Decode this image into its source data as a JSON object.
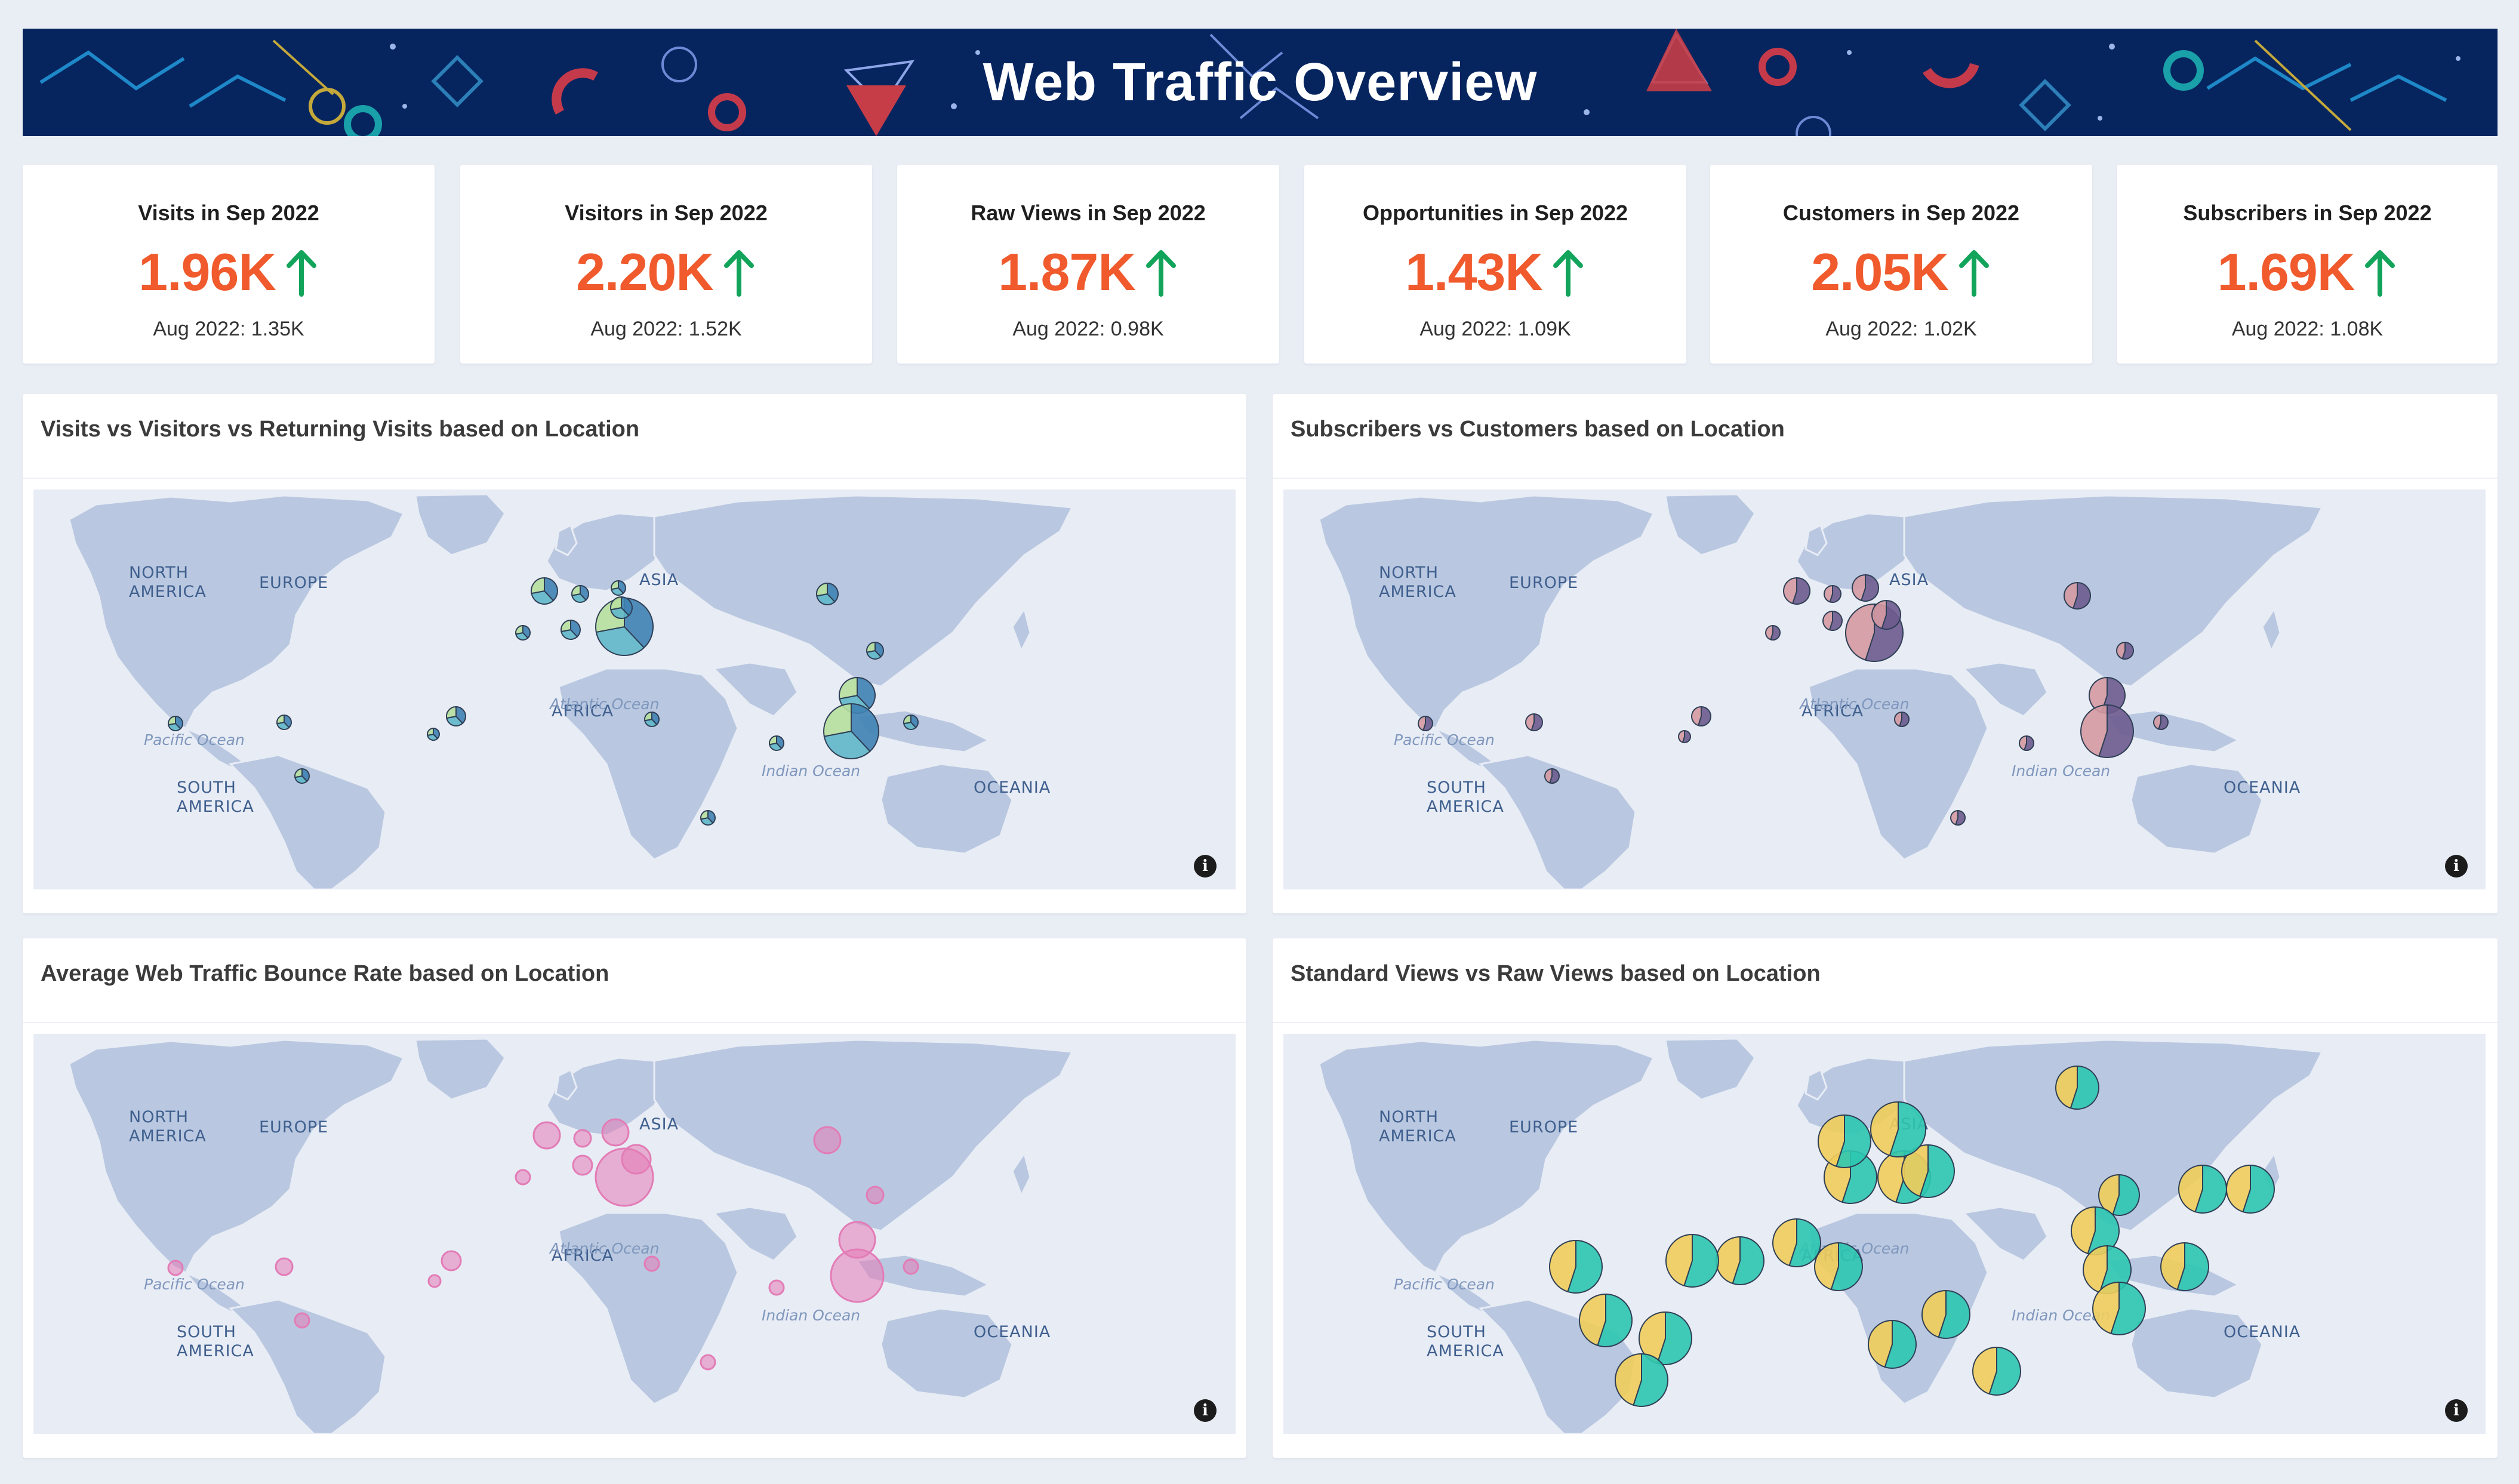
{
  "header": {
    "title": "Web Traffic Overview"
  },
  "colors": {
    "banner_bg": "#06255f",
    "kpi_value": "#f05a2c",
    "kpi_up_arrow": "#12a45a",
    "land": "#b9c8e0",
    "ocean": "#e8ecf5"
  },
  "kpis": [
    {
      "title": "Visits in Sep 2022",
      "value": "1.96K",
      "trend_icon": "arrow-up-icon",
      "previous": "Aug 2022: 1.35K"
    },
    {
      "title": "Visitors in Sep 2022",
      "value": "2.20K",
      "trend_icon": "arrow-up-icon",
      "previous": "Aug 2022: 1.52K"
    },
    {
      "title": "Raw Views in Sep 2022",
      "value": "1.87K",
      "trend_icon": "arrow-up-icon",
      "previous": "Aug 2022: 0.98K"
    },
    {
      "title": "Opportunities in Sep 2022",
      "value": "1.43K",
      "trend_icon": "arrow-up-icon",
      "previous": "Aug 2022: 1.09K"
    },
    {
      "title": "Customers in Sep 2022",
      "value": "2.05K",
      "trend_icon": "arrow-up-icon",
      "previous": "Aug 2022: 1.02K"
    },
    {
      "title": "Subscribers in Sep 2022",
      "value": "1.69K",
      "trend_icon": "arrow-up-icon",
      "previous": "Aug 2022: 1.08K"
    }
  ],
  "map_labels": {
    "continents": [
      "NORTH",
      "AMERICA",
      "SOUTH",
      "AMERICA",
      "EUROPE",
      "ASIA",
      "AFRICA",
      "OCEANIA"
    ],
    "oceans": [
      "Pacific Ocean",
      "Atlantic Ocean",
      "Indian Ocean"
    ]
  },
  "panels": [
    {
      "title": "Visits vs Visitors vs Returning Visits based on Location",
      "info_icon": "info-icon",
      "marker_style": "pie3",
      "marker_colors": [
        "#3f82b4",
        "#5fb7c9",
        "#b7e09e"
      ]
    },
    {
      "title": "Subscribers vs Customers based on Location",
      "info_icon": "info-icon",
      "marker_style": "pie2",
      "marker_colors": [
        "#6d5b8e",
        "#d59aa2"
      ]
    },
    {
      "title": "Average Web Traffic Bounce Rate based on Location",
      "info_icon": "info-icon",
      "marker_style": "bubble",
      "marker_colors": [
        "#e37cb6"
      ]
    },
    {
      "title": "Standard Views vs Raw Views based on Location",
      "info_icon": "info-icon",
      "marker_style": "pie2",
      "marker_colors": [
        "#2cc7b0",
        "#f1cd5b"
      ]
    }
  ]
}
